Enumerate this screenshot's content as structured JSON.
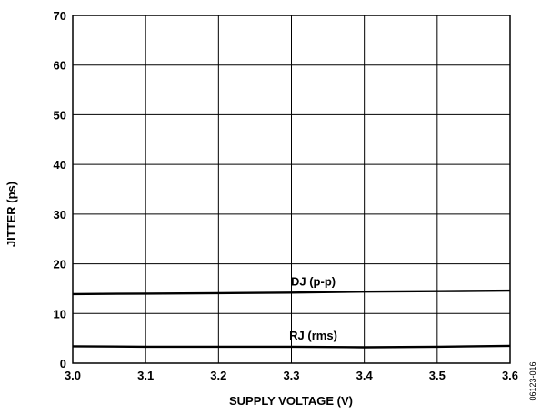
{
  "chart_data": {
    "type": "line",
    "title": "",
    "xlabel": "SUPPLY VOLTAGE (V)",
    "ylabel": "JITTER (ps)",
    "xlim": [
      3.0,
      3.6
    ],
    "ylim": [
      0,
      70
    ],
    "xticks": [
      "3.0",
      "3.1",
      "3.2",
      "3.3",
      "3.4",
      "3.5",
      "3.6"
    ],
    "yticks": [
      "0",
      "10",
      "20",
      "30",
      "40",
      "50",
      "60",
      "70"
    ],
    "grid": true,
    "legend": "none",
    "series": [
      {
        "name": "DJ (p-p)",
        "x": [
          3.0,
          3.1,
          3.2,
          3.3,
          3.4,
          3.5,
          3.6
        ],
        "y": [
          13.9,
          14.0,
          14.1,
          14.2,
          14.4,
          14.5,
          14.6
        ]
      },
      {
        "name": "RJ (rms)",
        "x": [
          3.0,
          3.1,
          3.2,
          3.3,
          3.4,
          3.5,
          3.6
        ],
        "y": [
          3.4,
          3.3,
          3.3,
          3.3,
          3.2,
          3.3,
          3.5
        ]
      }
    ],
    "figure_id": "06123-016",
    "colors": {
      "line": "#000000",
      "grid": "#000000"
    }
  }
}
